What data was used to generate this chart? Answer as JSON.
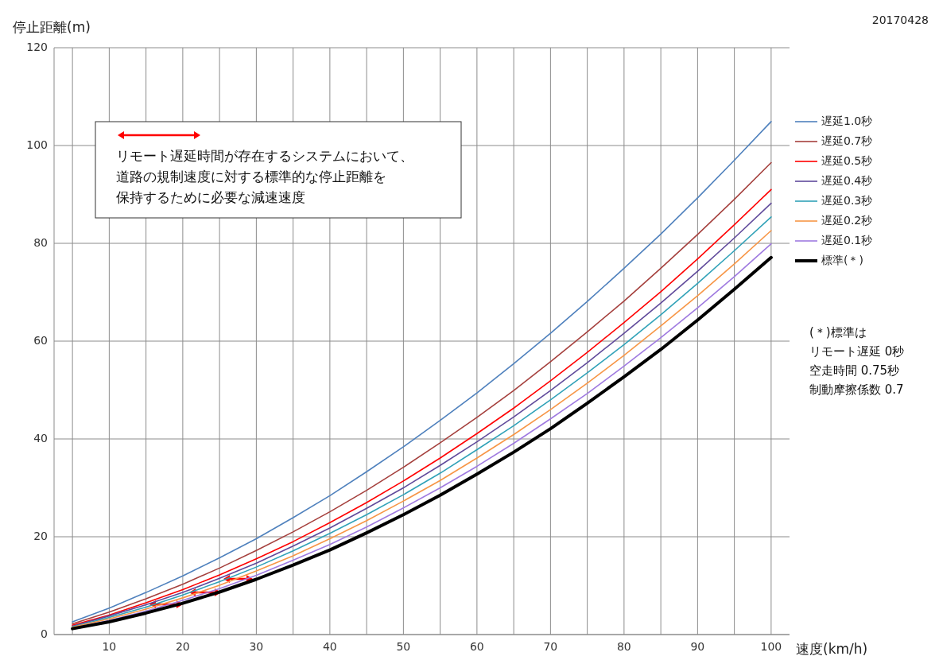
{
  "chart_data": {
    "type": "line",
    "xlabel": "速度(km/h)",
    "ylabel": "停止距離(m)",
    "x": [
      5,
      10,
      15,
      20,
      25,
      30,
      35,
      40,
      45,
      50,
      55,
      60,
      65,
      70,
      75,
      80,
      85,
      90,
      95,
      100
    ],
    "xlim": [
      2.5,
      102.5
    ],
    "xticks": [
      {
        "value": 5,
        "label": null
      },
      10,
      {
        "value": 15,
        "label": null
      },
      20,
      {
        "value": 25,
        "label": null
      },
      30,
      {
        "value": 35,
        "label": null
      },
      40,
      {
        "value": 45,
        "label": null
      },
      50,
      {
        "value": 55,
        "label": null
      },
      60,
      {
        "value": 65,
        "label": null
      },
      70,
      {
        "value": 75,
        "label": null
      },
      80,
      {
        "value": 85,
        "label": null
      },
      90,
      {
        "value": 95,
        "label": null
      },
      100
    ],
    "ylim": [
      0,
      120
    ],
    "yticks": [
      0,
      20,
      40,
      60,
      80,
      100,
      120
    ],
    "grid": true,
    "legend": "right",
    "marker": "none",
    "line_style": "solid",
    "series": [
      {
        "name": "遅延1.0秒",
        "color": "#4f81bd",
        "values": [
          2.6,
          5.4,
          8.6,
          12.0,
          15.7,
          19.6,
          23.9,
          28.4,
          33.3,
          38.4,
          43.8,
          49.4,
          55.4,
          61.6,
          68.1,
          74.9,
          81.9,
          89.3,
          97.0,
          104.9
        ]
      },
      {
        "name": "遅延0.7秒",
        "color": "#a5403d",
        "values": [
          2.2,
          4.6,
          7.3,
          10.3,
          13.6,
          17.2,
          21.0,
          25.1,
          29.5,
          34.2,
          39.2,
          44.4,
          49.9,
          55.8,
          61.9,
          68.2,
          74.9,
          81.8,
          89.0,
          96.5
        ]
      },
      {
        "name": "遅延0.5秒",
        "color": "#ff0000",
        "values": [
          1.9,
          4.0,
          6.5,
          9.2,
          12.2,
          15.5,
          19.0,
          22.9,
          27.0,
          31.4,
          36.1,
          41.1,
          46.3,
          51.9,
          57.7,
          63.8,
          70.1,
          76.8,
          83.8,
          91.0
        ]
      },
      {
        "name": "遅延0.4秒",
        "color": "#604a9b",
        "values": [
          1.7,
          3.8,
          6.1,
          8.6,
          11.5,
          14.6,
          18.1,
          21.8,
          25.8,
          30.0,
          34.6,
          39.4,
          44.5,
          49.9,
          55.6,
          61.6,
          67.8,
          74.3,
          81.1,
          88.2
        ]
      },
      {
        "name": "遅延0.3秒",
        "color": "#31a2b8",
        "values": [
          1.6,
          3.5,
          5.6,
          8.1,
          10.8,
          13.8,
          17.1,
          20.7,
          24.5,
          28.6,
          33.0,
          37.8,
          42.7,
          48.0,
          53.5,
          59.3,
          65.4,
          71.8,
          78.5,
          85.4
        ]
      },
      {
        "name": "遅延0.2秒",
        "color": "#f79646",
        "values": [
          1.5,
          3.2,
          5.2,
          7.5,
          10.1,
          13.0,
          16.1,
          19.6,
          23.3,
          27.3,
          31.5,
          36.1,
          40.9,
          46.0,
          51.4,
          57.1,
          63.1,
          69.3,
          75.8,
          82.6
        ]
      },
      {
        "name": "遅延0.1秒",
        "color": "#9f7ae0",
        "values": [
          1.3,
          2.9,
          4.8,
          7.0,
          9.4,
          12.1,
          15.2,
          18.4,
          22.0,
          25.9,
          30.0,
          34.4,
          39.1,
          44.1,
          49.3,
          54.9,
          60.7,
          66.8,
          73.2,
          79.9
        ]
      },
      {
        "name": "標準(＊)",
        "color": "#000000",
        "values": [
          1.2,
          2.6,
          4.4,
          6.4,
          8.7,
          11.3,
          14.2,
          17.3,
          20.8,
          24.5,
          28.5,
          32.8,
          37.3,
          42.1,
          47.3,
          52.7,
          58.3,
          64.3,
          70.6,
          77.1
        ]
      }
    ],
    "annotations": [
      "リモート遅延時間が存在するシステムにおいて、",
      "道路の規制速度に対する標準的な停止距離を",
      "保持するために必要な減速速度",
      "(＊)標準は",
      "リモート遅延 0秒",
      "空走時間 0.75秒",
      "制動摩擦係数 0.7",
      "20170428"
    ]
  }
}
